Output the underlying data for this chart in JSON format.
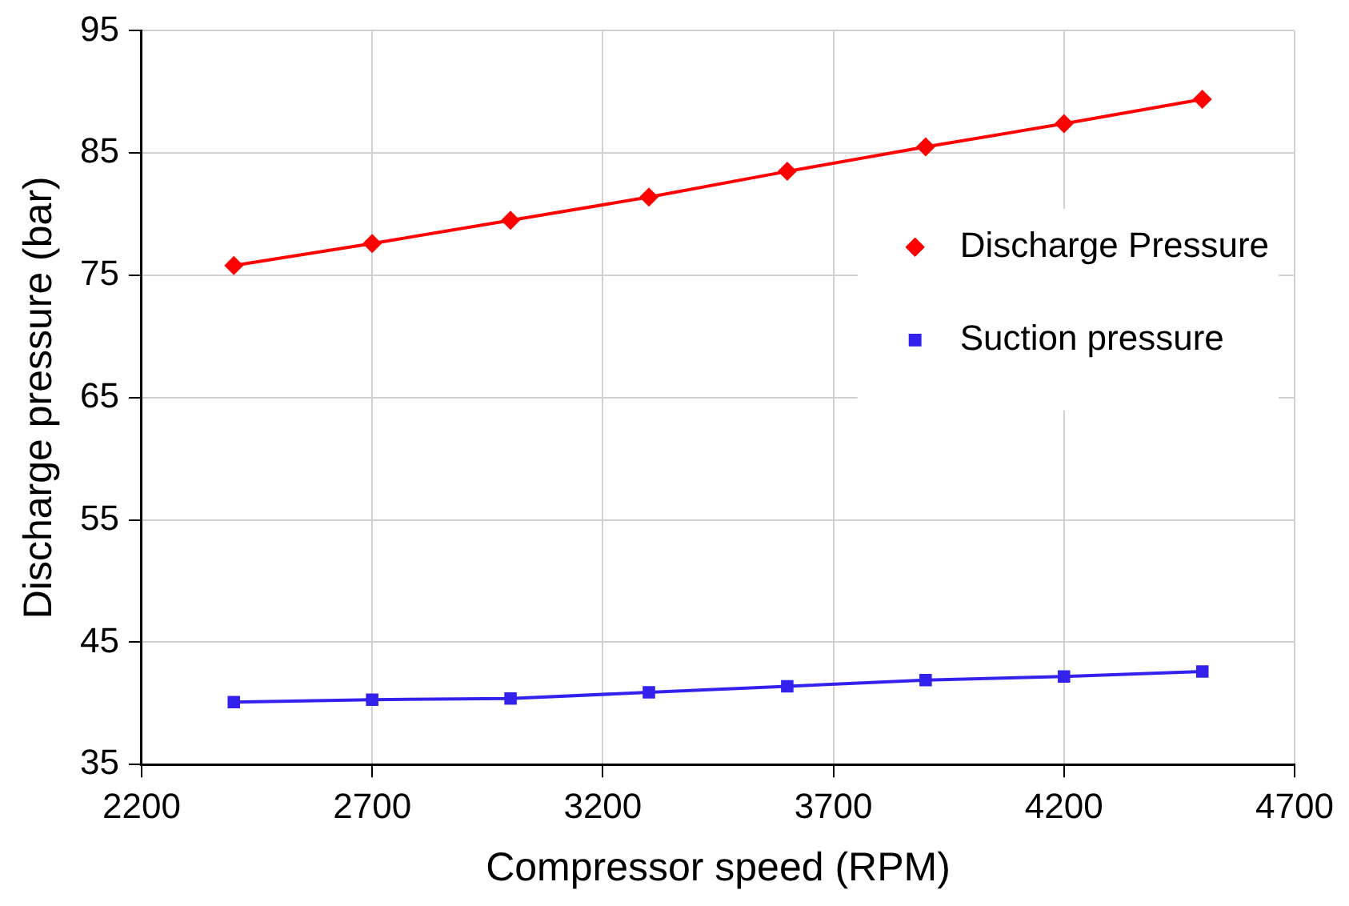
{
  "chart_data": {
    "type": "line",
    "xlabel": "Compressor speed (RPM)",
    "ylabel": "Discharge pressure (bar)",
    "x": [
      2400,
      2700,
      3000,
      3300,
      3600,
      3900,
      4200,
      4500
    ],
    "series": [
      {
        "name": "Discharge Pressure",
        "color": "#ff0000",
        "marker": "diamond",
        "values": [
          75.8,
          77.6,
          79.5,
          81.4,
          83.5,
          85.5,
          87.4,
          89.4
        ]
      },
      {
        "name": "Suction pressure",
        "color": "#3322ee",
        "marker": "square",
        "values": [
          40.1,
          40.3,
          40.4,
          40.9,
          41.4,
          41.9,
          42.2,
          42.6
        ]
      }
    ],
    "xlim": [
      2200,
      4700
    ],
    "xticks": [
      2200,
      2700,
      3200,
      3700,
      4200,
      4700
    ],
    "ylim": [
      35,
      95
    ],
    "yticks": [
      35,
      45,
      55,
      65,
      75,
      85,
      95
    ],
    "grid": true,
    "legend": "right",
    "line_style": "solid"
  }
}
